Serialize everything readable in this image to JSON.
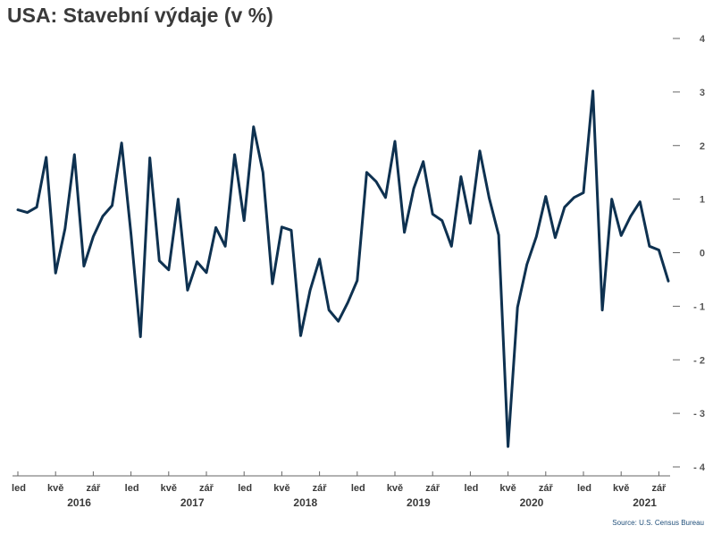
{
  "title": "USA: Stavební výdaje (v %)",
  "source": "Source: U.S. Census Bureau",
  "colors": {
    "line": "#0e3150",
    "axis": "#666666",
    "text": "#3a3a3a"
  },
  "chart_data": {
    "type": "line",
    "title": "USA: Stavební výdaje (v %)",
    "ylim": [
      -4,
      4
    ],
    "yticks": [
      -4,
      -3,
      -2,
      -1,
      0,
      1,
      2,
      3,
      4
    ],
    "grid": false,
    "y_axis_side": "right",
    "month_tick_labels": [
      "led",
      "kvě",
      "zář"
    ],
    "years": [
      "2016",
      "2017",
      "2018",
      "2019",
      "2020",
      "2021"
    ],
    "x_start": "2016-01",
    "series": [
      {
        "values": [
          0.8,
          0.75,
          0.85,
          1.78,
          -0.38,
          0.45,
          1.83,
          -0.25,
          0.3,
          0.68,
          0.88,
          2.05,
          0.35,
          -1.57,
          1.77,
          -0.15,
          -0.32,
          1.0,
          -0.7,
          -0.17,
          -0.37,
          0.47,
          0.12,
          1.83,
          0.6,
          2.35,
          1.5,
          -0.58,
          0.48,
          0.42,
          -1.55,
          -0.7,
          -0.12,
          -1.07,
          -1.28,
          -0.93,
          -0.52,
          1.5,
          1.33,
          1.03,
          2.08,
          0.38,
          1.2,
          1.7,
          0.72,
          0.6,
          0.12,
          1.42,
          0.55,
          1.9,
          1.02,
          0.33,
          -3.62,
          -1.02,
          -0.22,
          0.3,
          1.05,
          0.28,
          0.85,
          1.03,
          1.12,
          3.02,
          -1.07,
          1.0,
          0.32,
          0.68,
          0.95,
          0.12,
          0.05,
          -0.53
        ]
      }
    ]
  }
}
